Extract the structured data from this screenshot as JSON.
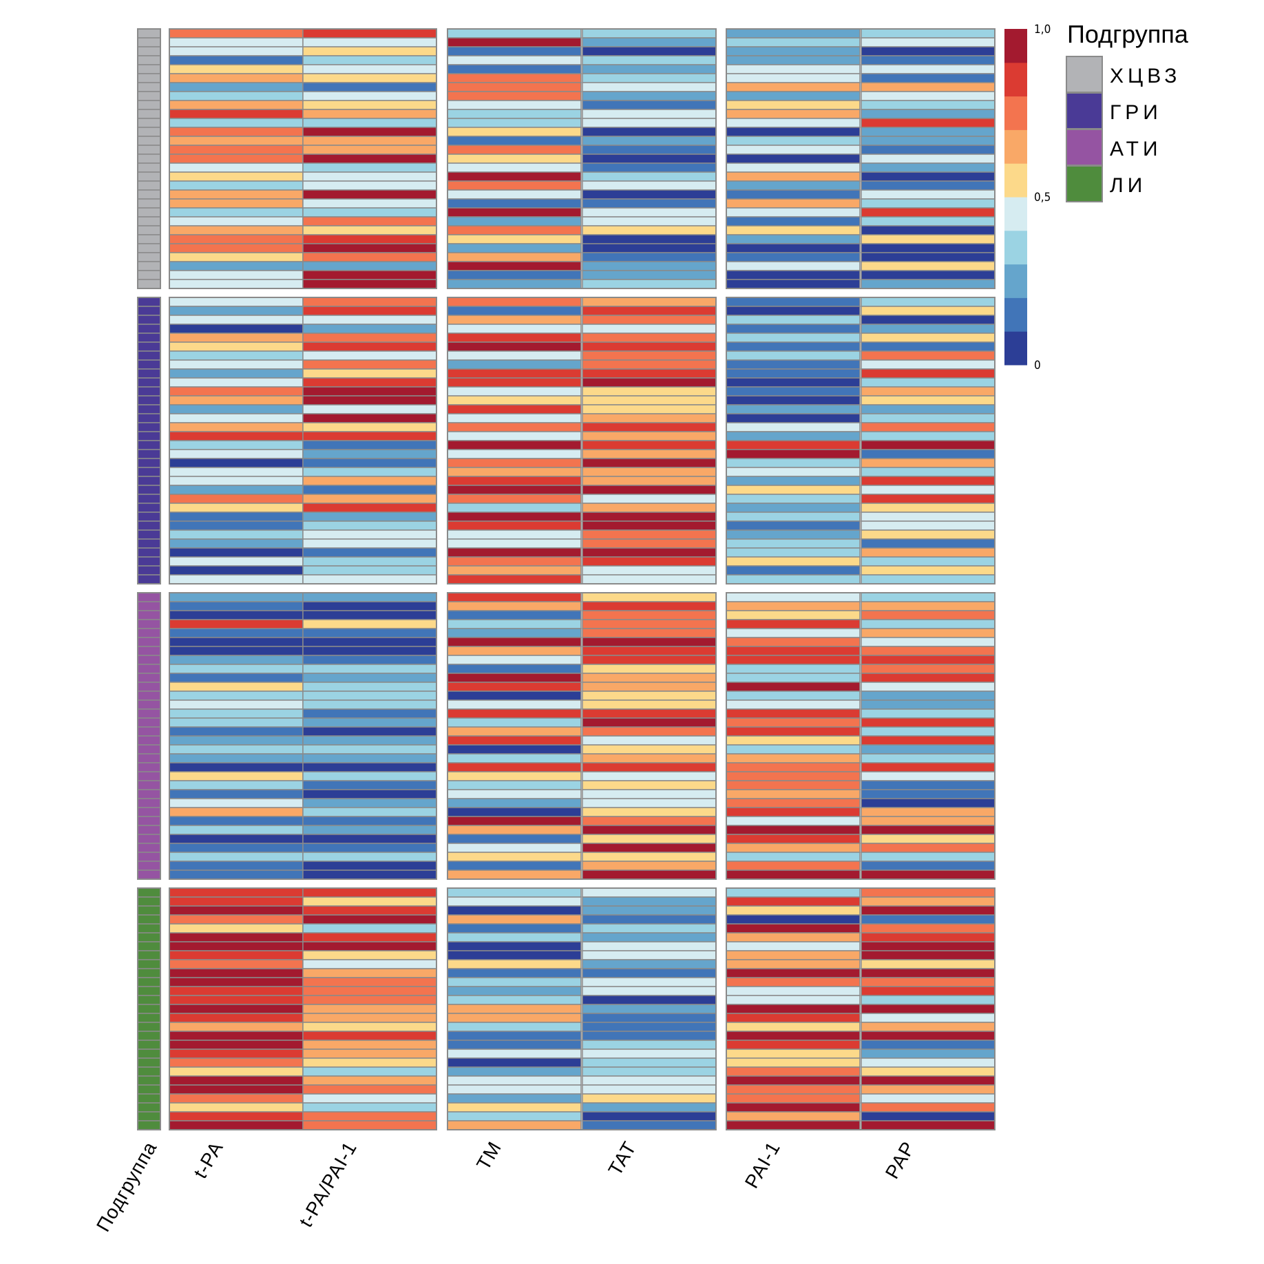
{
  "chart_data": {
    "type": "heatmap",
    "title": "",
    "columns": [
      "t-PA",
      "t-PA/PAI-1",
      "TM",
      "TAT",
      "PAI-1",
      "PAP"
    ],
    "column_blocks": [
      [
        "t-PA",
        "t-PA/PAI-1"
      ],
      [
        "TM",
        "TAT"
      ],
      [
        "PAI-1",
        "PAP"
      ]
    ],
    "annotation_column_label": "Подгруппа",
    "value_range": [
      0,
      1
    ],
    "colorbar": {
      "ticks": [
        {
          "value": 0,
          "label": "0"
        },
        {
          "value": 0.5,
          "label": "0,5"
        },
        {
          "value": 1,
          "label": "1,0"
        }
      ],
      "bins": 10,
      "colors": [
        "#2c3e96",
        "#4175b8",
        "#65a5cc",
        "#9bd3e3",
        "#d6ecf1",
        "#f8f4be",
        "#fcd98a",
        "#f9a867",
        "#f3744f",
        "#db3b32",
        "#a31a2f"
      ]
    },
    "value_encoding": "bin index 0-9; value ≈ (bin + 0.5) / 10",
    "legend": {
      "title": "Подгруппа",
      "items": [
        {
          "label": "ХЦВЗ",
          "color": "#b2b3b6"
        },
        {
          "label": "ГРИ",
          "color": "#4a3a96"
        },
        {
          "label": "АТИ",
          "color": "#9554a2"
        },
        {
          "label": "ЛИ",
          "color": "#4f8c3d"
        }
      ]
    },
    "groups": [
      {
        "name": "ХЦВЗ",
        "rows": 29,
        "bins": {
          "t-PA": [
            7,
            4,
            4,
            1,
            5,
            6,
            2,
            3,
            6,
            8,
            3,
            7,
            6,
            7,
            7,
            4,
            5,
            3,
            6,
            6,
            3,
            4,
            6,
            7,
            7,
            5,
            2,
            4,
            4
          ],
          "t-PA/PAI-1": [
            8,
            4,
            5,
            3,
            4,
            5,
            1,
            4,
            5,
            6,
            3,
            9,
            6,
            6,
            9,
            3,
            4,
            4,
            9,
            4,
            3,
            7,
            5,
            8,
            9,
            7,
            2,
            9,
            9
          ],
          "TM": [
            3,
            9,
            1,
            4,
            1,
            7,
            7,
            7,
            4,
            3,
            3,
            5,
            1,
            7,
            5,
            4,
            9,
            7,
            4,
            1,
            9,
            2,
            7,
            5,
            2,
            6,
            9,
            1,
            2
          ],
          "TAT": [
            3,
            2,
            0,
            3,
            2,
            3,
            4,
            2,
            1,
            4,
            4,
            0,
            2,
            1,
            0,
            1,
            3,
            4,
            0,
            1,
            4,
            4,
            5,
            0,
            0,
            1,
            2,
            2,
            3
          ],
          "PAI-1": [
            2,
            3,
            2,
            2,
            4,
            4,
            6,
            2,
            5,
            6,
            4,
            0,
            3,
            4,
            0,
            4,
            6,
            2,
            1,
            6,
            4,
            1,
            5,
            2,
            0,
            1,
            4,
            0,
            0
          ],
          "PAP": [
            3,
            4,
            0,
            1,
            4,
            1,
            6,
            4,
            3,
            2,
            8,
            2,
            2,
            1,
            4,
            2,
            0,
            1,
            4,
            3,
            8,
            3,
            0,
            5,
            0,
            0,
            5,
            0,
            2
          ]
        }
      },
      {
        "name": "ГРИ",
        "rows": 32,
        "bins": {
          "t-PA": [
            4,
            2,
            4,
            0,
            6,
            5,
            3,
            4,
            2,
            4,
            7,
            6,
            2,
            4,
            6,
            8,
            3,
            4,
            0,
            4,
            4,
            2,
            7,
            5,
            1,
            1,
            3,
            2,
            0,
            4,
            0,
            4
          ],
          "t-PA/PAI-1": [
            7,
            8,
            4,
            2,
            7,
            8,
            4,
            7,
            5,
            8,
            9,
            9,
            4,
            9,
            5,
            8,
            1,
            2,
            1,
            3,
            6,
            1,
            6,
            8,
            2,
            3,
            4,
            4,
            1,
            3,
            3,
            4
          ],
          "TM": [
            7,
            1,
            6,
            4,
            8,
            9,
            4,
            2,
            8,
            8,
            4,
            5,
            8,
            4,
            7,
            4,
            9,
            4,
            7,
            6,
            8,
            9,
            7,
            3,
            9,
            8,
            4,
            4,
            9,
            7,
            6,
            8
          ],
          "TAT": [
            6,
            8,
            7,
            4,
            7,
            8,
            7,
            7,
            8,
            9,
            5,
            5,
            5,
            6,
            8,
            6,
            8,
            6,
            9,
            6,
            6,
            9,
            4,
            6,
            9,
            9,
            7,
            7,
            9,
            8,
            4,
            4
          ],
          "PAI-1": [
            1,
            0,
            3,
            1,
            3,
            1,
            3,
            1,
            1,
            0,
            1,
            0,
            2,
            0,
            4,
            2,
            8,
            9,
            3,
            4,
            2,
            5,
            3,
            2,
            3,
            1,
            2,
            3,
            3,
            5,
            1,
            3
          ],
          "PAP": [
            3,
            5,
            0,
            2,
            5,
            1,
            7,
            4,
            8,
            3,
            6,
            5,
            2,
            3,
            7,
            3,
            9,
            1,
            6,
            3,
            8,
            4,
            8,
            5,
            4,
            4,
            5,
            1,
            6,
            3,
            5,
            3
          ]
        }
      },
      {
        "name": "АТИ",
        "rows": 32,
        "bins": {
          "t-PA": [
            2,
            1,
            0,
            8,
            1,
            0,
            0,
            2,
            3,
            1,
            5,
            3,
            4,
            3,
            3,
            1,
            2,
            3,
            2,
            0,
            5,
            3,
            1,
            4,
            6,
            1,
            3,
            0,
            1,
            3,
            1,
            1
          ],
          "t-PA/PAI-1": [
            2,
            0,
            0,
            5,
            1,
            0,
            0,
            1,
            3,
            2,
            3,
            3,
            3,
            1,
            2,
            0,
            2,
            3,
            2,
            0,
            3,
            1,
            0,
            2,
            3,
            1,
            2,
            0,
            1,
            3,
            0,
            0
          ],
          "TM": [
            8,
            6,
            1,
            3,
            2,
            9,
            6,
            4,
            1,
            9,
            8,
            0,
            4,
            8,
            3,
            6,
            8,
            0,
            3,
            8,
            5,
            3,
            4,
            2,
            0,
            9,
            6,
            1,
            4,
            5,
            1,
            6
          ],
          "TAT": [
            5,
            8,
            7,
            7,
            7,
            9,
            8,
            8,
            5,
            6,
            6,
            5,
            5,
            8,
            9,
            7,
            4,
            5,
            6,
            8,
            4,
            5,
            4,
            4,
            5,
            7,
            9,
            5,
            9,
            5,
            6,
            9
          ],
          "PAI-1": [
            4,
            6,
            5,
            8,
            4,
            7,
            8,
            8,
            3,
            3,
            9,
            3,
            4,
            8,
            7,
            8,
            5,
            3,
            6,
            7,
            7,
            7,
            6,
            7,
            8,
            4,
            9,
            8,
            6,
            3,
            7,
            9
          ],
          "PAP": [
            3,
            6,
            7,
            3,
            6,
            4,
            7,
            8,
            7,
            8,
            4,
            2,
            2,
            3,
            8,
            3,
            8,
            2,
            3,
            8,
            4,
            1,
            1,
            0,
            6,
            6,
            9,
            5,
            7,
            3,
            1,
            9
          ]
        }
      },
      {
        "name": "ЛИ",
        "rows": 27,
        "bins": {
          "t-PA": [
            8,
            8,
            9,
            7,
            5,
            9,
            9,
            8,
            7,
            9,
            9,
            8,
            8,
            9,
            8,
            6,
            9,
            9,
            8,
            7,
            5,
            9,
            9,
            7,
            5,
            8,
            9
          ],
          "t-PA/PAI-1": [
            8,
            5,
            8,
            9,
            3,
            8,
            9,
            5,
            4,
            6,
            7,
            7,
            7,
            6,
            6,
            5,
            8,
            6,
            6,
            5,
            3,
            6,
            7,
            4,
            3,
            7,
            7
          ],
          "TM": [
            3,
            4,
            0,
            6,
            1,
            3,
            0,
            0,
            5,
            1,
            3,
            2,
            3,
            6,
            6,
            3,
            1,
            1,
            4,
            0,
            2,
            4,
            4,
            2,
            5,
            3,
            6
          ],
          "TAT": [
            4,
            2,
            2,
            1,
            3,
            2,
            4,
            4,
            2,
            1,
            4,
            4,
            0,
            2,
            1,
            1,
            1,
            3,
            4,
            3,
            3,
            4,
            4,
            5,
            2,
            0,
            1
          ],
          "PAI-1": [
            3,
            8,
            5,
            0,
            9,
            6,
            4,
            6,
            6,
            9,
            7,
            4,
            4,
            9,
            8,
            5,
            9,
            8,
            5,
            5,
            7,
            9,
            7,
            7,
            9,
            6,
            9
          ],
          "PAP": [
            7,
            6,
            9,
            1,
            7,
            8,
            9,
            9,
            5,
            9,
            7,
            8,
            3,
            9,
            4,
            6,
            9,
            1,
            2,
            4,
            5,
            9,
            6,
            4,
            7,
            0,
            9
          ]
        }
      }
    ],
    "grid": true,
    "legend_position": "right"
  }
}
